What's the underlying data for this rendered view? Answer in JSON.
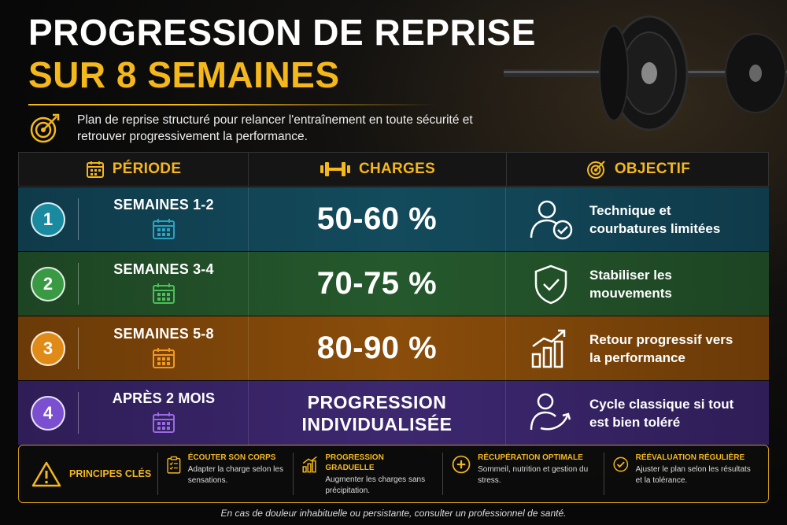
{
  "title": {
    "line1": "PROGRESSION DE REPRISE",
    "line2": "SUR 8 SEMAINES"
  },
  "subtitle": "Plan de reprise structuré pour relancer l'entraînement en toute sécurité et retrouver progressivement la performance.",
  "table": {
    "headers": [
      "PÉRIODE",
      "CHARGES",
      "OBJECTIF"
    ],
    "rows": [
      {
        "num": "1",
        "period": "SEMAINES 1-2",
        "charge": "50-60 %",
        "objective": "Technique et courbatures limitées",
        "color": "#1a8aa0"
      },
      {
        "num": "2",
        "period": "SEMAINES 3-4",
        "charge": "70-75 %",
        "objective": "Stabiliser les mouvements",
        "color": "#3a9a44"
      },
      {
        "num": "3",
        "period": "SEMAINES 5-8",
        "charge": "80-90 %",
        "objective": "Retour progressif vers la performance",
        "color": "#e08a18"
      },
      {
        "num": "4",
        "period": "APRÈS 2 MOIS",
        "charge": "PROGRESSION\nINDIVIDUALISÉE",
        "objective": "Cycle classique si tout est bien toléré",
        "color": "#7a4fd0"
      }
    ]
  },
  "principles": {
    "heading": "PRINCIPES CLÉS",
    "items": [
      {
        "title": "ÉCOUTER SON CORPS",
        "desc": "Adapter la charge selon les sensations."
      },
      {
        "title": "PROGRESSION GRADUELLE",
        "desc": "Augmenter les charges sans précipitation."
      },
      {
        "title": "RÉCUPÉRATION OPTIMALE",
        "desc": "Sommeil, nutrition et gestion du stress."
      },
      {
        "title": "RÉÉVALUATION RÉGULIÈRE",
        "desc": "Ajuster le plan selon les résultats et la tolérance."
      }
    ]
  },
  "footer": "En cas de douleur inhabituelle ou persistante, consulter un professionnel de santé.",
  "colors": {
    "accent": "#f5b81c"
  }
}
